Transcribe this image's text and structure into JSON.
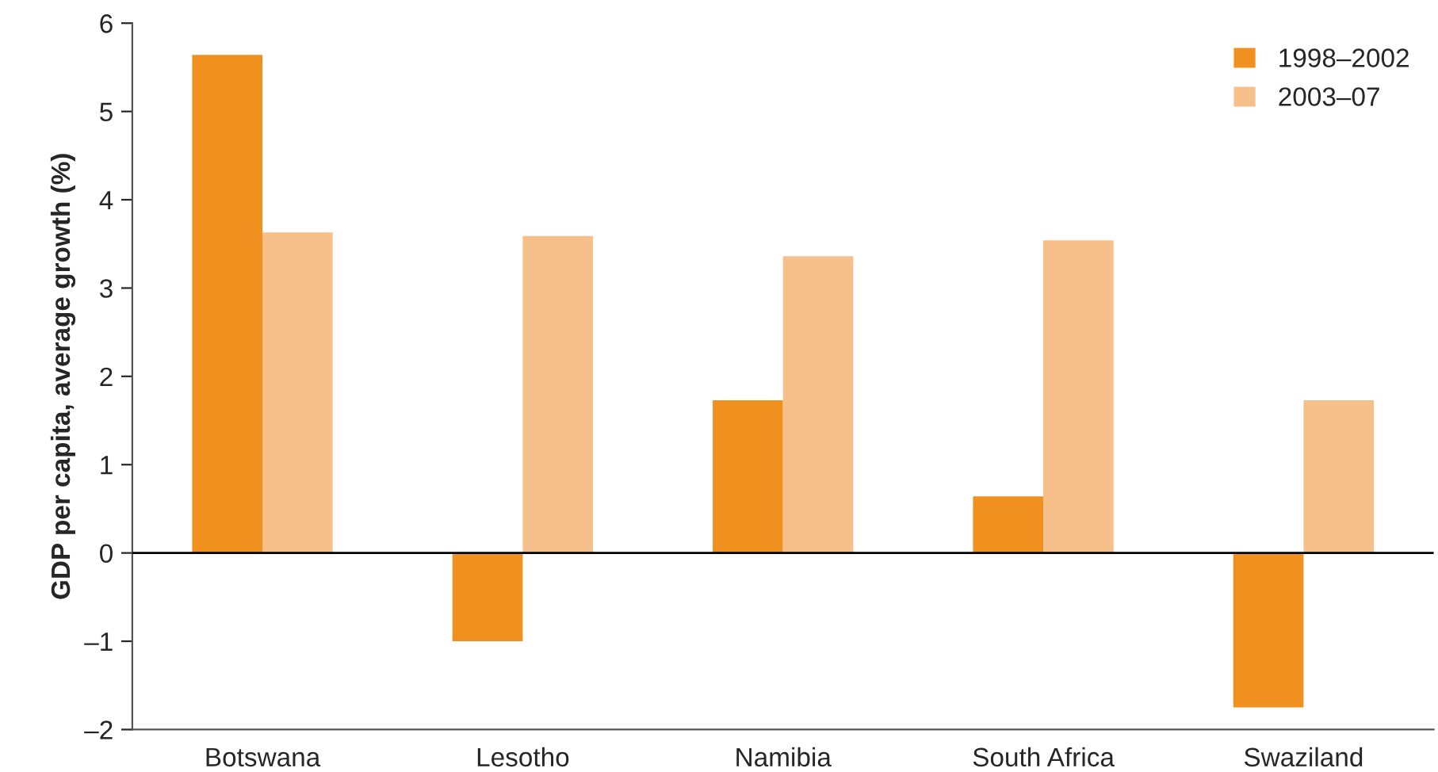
{
  "chart_data": {
    "type": "bar",
    "ylabel": "GDP per capita, average growth (%)",
    "categories": [
      "Botswana",
      "Lesotho",
      "Namibia",
      "South Africa",
      "Swaziland"
    ],
    "series": [
      {
        "name": "1998–2002",
        "color": "#f0901e",
        "values": [
          5.64,
          -1.0,
          1.73,
          0.64,
          -1.75
        ]
      },
      {
        "name": "2003–07",
        "color": "#f7c08a",
        "values": [
          3.63,
          3.59,
          3.36,
          3.54,
          1.73
        ]
      }
    ],
    "ylim": [
      -2,
      6
    ],
    "yticks": [
      {
        "value": -2,
        "label": "–2"
      },
      {
        "value": -1,
        "label": "–1"
      },
      0,
      1,
      2,
      3,
      4,
      5,
      6
    ],
    "ref_lines": [
      {
        "axis": "y",
        "value": 0,
        "color": "#000000"
      }
    ],
    "legend": "top right",
    "grid": false
  }
}
